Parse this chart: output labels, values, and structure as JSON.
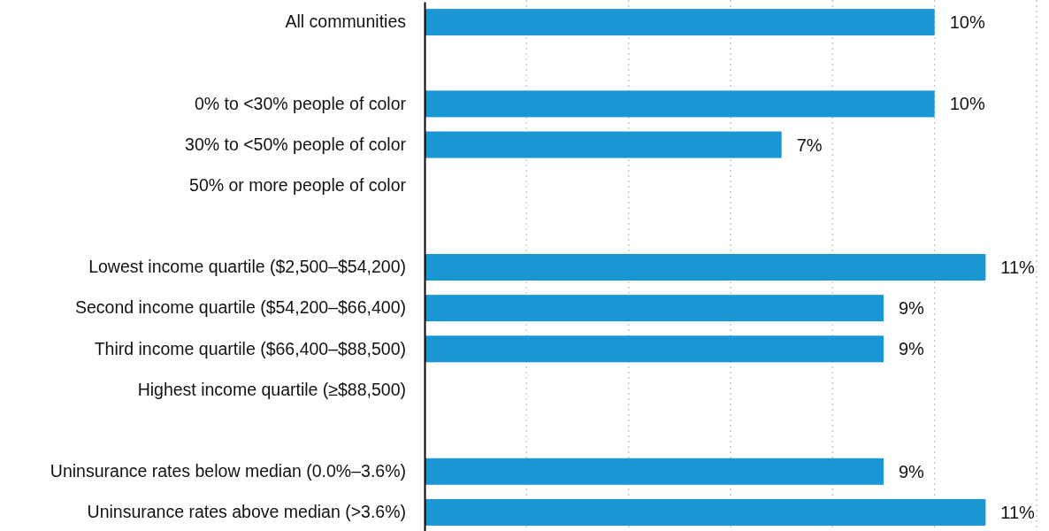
{
  "chart_data": {
    "type": "bar",
    "orientation": "horizontal",
    "categories": [
      "All communities",
      null,
      "0% to <30% people of color",
      "30% to <50% people of color",
      "50% or more people of color",
      null,
      "Lowest income quartile ($2,500–$54,200)",
      "Second income quartile ($54,200–$66,400)",
      "Third income quartile ($66,400–$88,500)",
      "Highest income quartile (≥$88,500)",
      null,
      "Uninsurance rates below median (0.0%–3.6%)",
      "Uninsurance rates above median (>3.6%)"
    ],
    "values": [
      10,
      null,
      10,
      7,
      null,
      null,
      11,
      9,
      9,
      null,
      null,
      9,
      11
    ],
    "value_labels": [
      "10%",
      null,
      "10%",
      "7%",
      null,
      null,
      "11%",
      "9%",
      "9%",
      null,
      null,
      "9%",
      "11%"
    ],
    "color": "#1996d4",
    "xlim": [
      0,
      12
    ],
    "xticks": [
      {
        "value": 2,
        "label": null
      },
      {
        "value": 4,
        "label": null
      },
      {
        "value": 6,
        "label": null
      },
      {
        "value": 8,
        "label": null
      },
      {
        "value": 10,
        "label": null
      },
      {
        "value": 12,
        "label": null
      }
    ],
    "grid": "x",
    "tick_labels": "y"
  }
}
